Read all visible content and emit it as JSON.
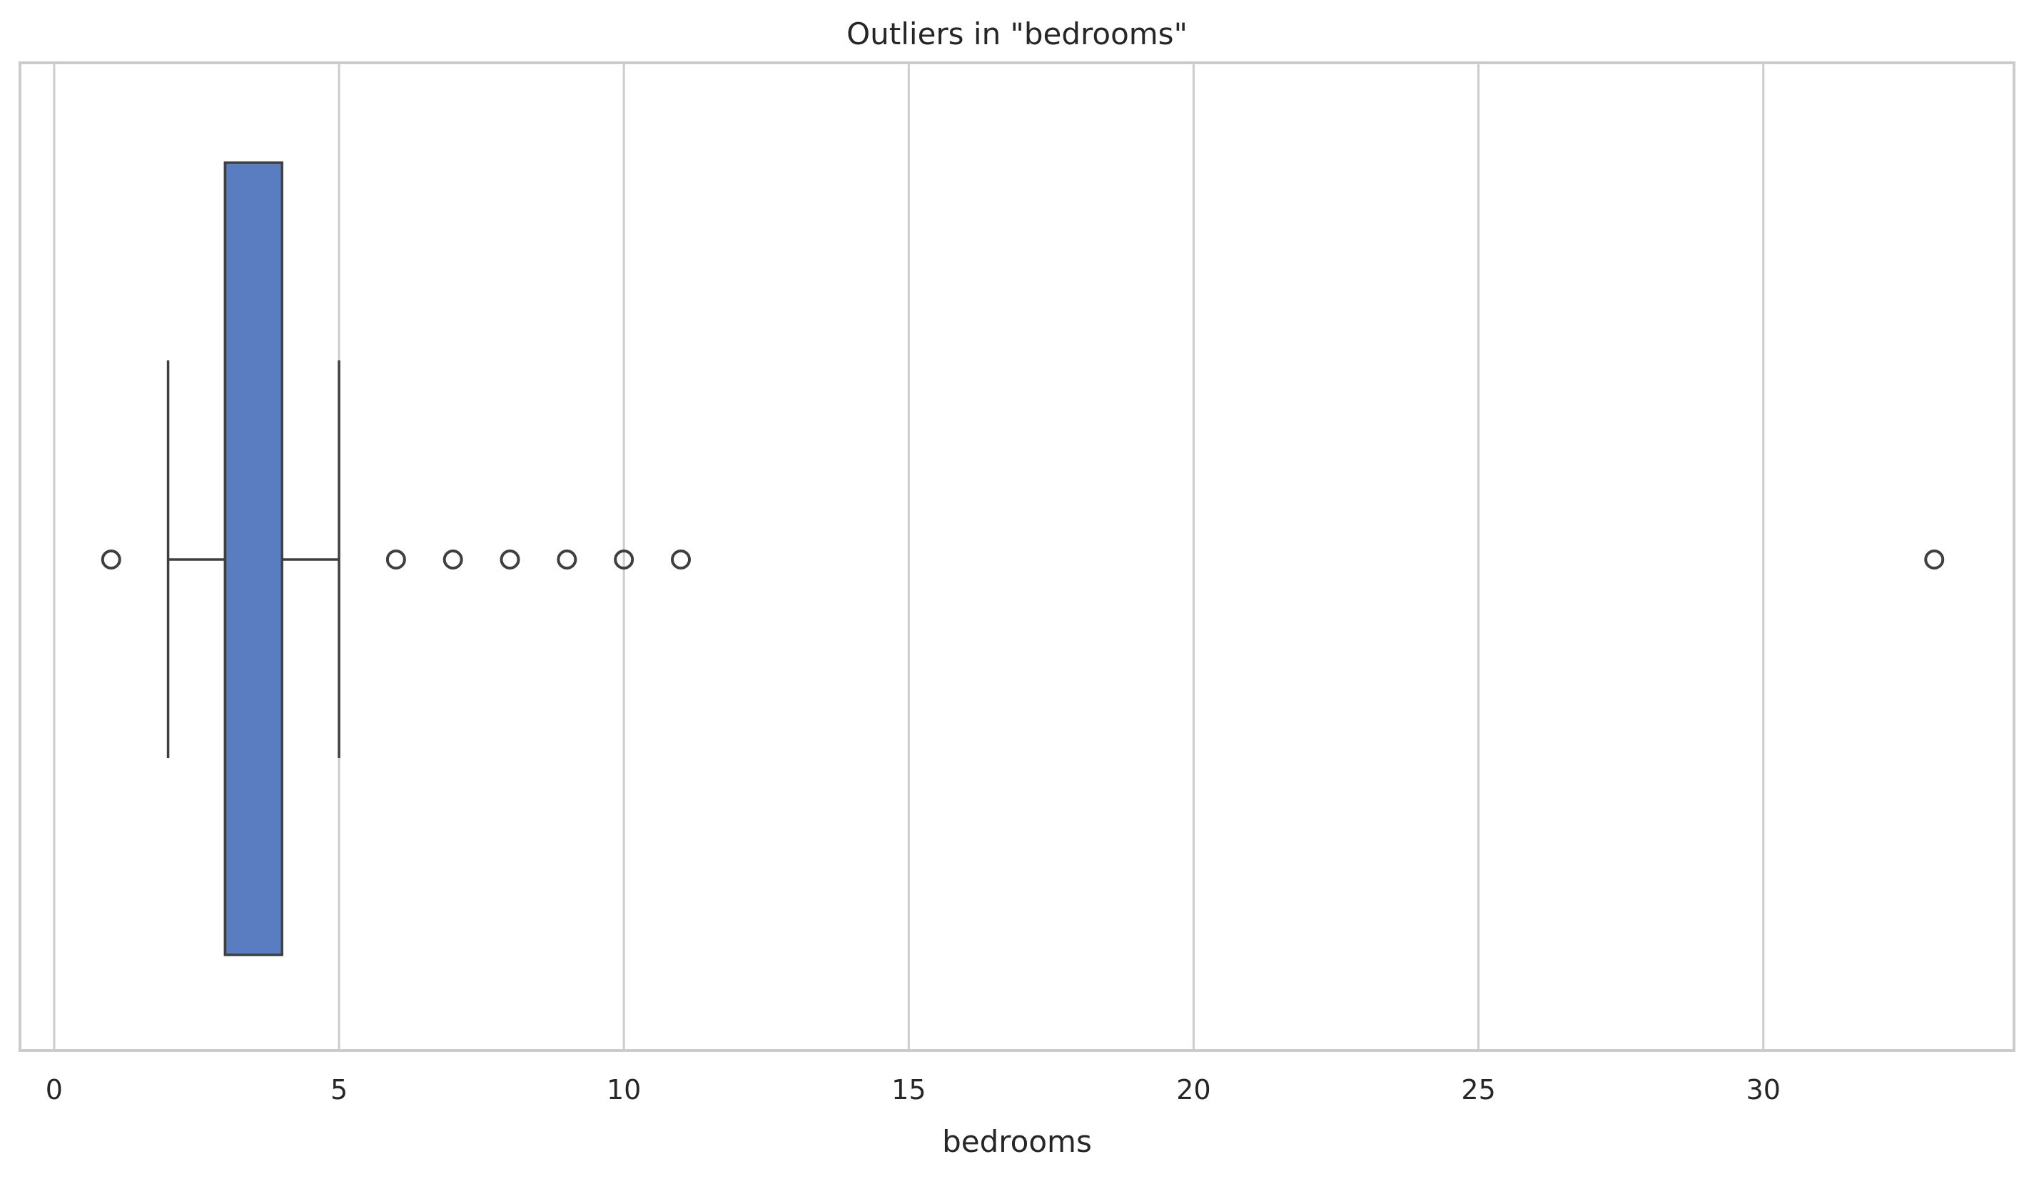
{
  "chart_data": {
    "type": "box",
    "orientation": "horizontal",
    "title": "Outliers in \"bedrooms\"",
    "xlabel": "bedrooms",
    "ylabel": "",
    "xlim": [
      -0.6,
      34.4
    ],
    "xticks": [
      0,
      5,
      10,
      15,
      20,
      25,
      30
    ],
    "grid": "vertical",
    "box": {
      "whisker_low": 2,
      "q1": 3,
      "median": 3,
      "q3": 4,
      "whisker_high": 5
    },
    "outliers": [
      1,
      6,
      7,
      8,
      9,
      10,
      11,
      33
    ],
    "colors": {
      "box_fill": "#5a7dc1",
      "line": "#3f3f3f",
      "grid": "#cccccc",
      "frame": "#cccccc",
      "text": "#262626"
    }
  }
}
